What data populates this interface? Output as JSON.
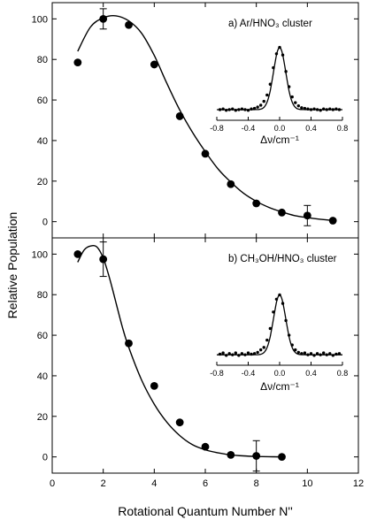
{
  "figure": {
    "xlabel": "Rotational Quantum Number N''",
    "ylabel": "Relative Population"
  },
  "chart_data": [
    {
      "type": "scatter",
      "panel_label": "a) Ar/HNO₃ cluster",
      "xlim": [
        0,
        12
      ],
      "ylim": [
        -8,
        108
      ],
      "xticks": [
        0,
        2,
        4,
        6,
        8,
        10,
        12
      ],
      "yticks": [
        0,
        20,
        40,
        60,
        80,
        100
      ],
      "points": [
        {
          "x": 1,
          "y": 78.5
        },
        {
          "x": 2,
          "y": 100
        },
        {
          "x": 3,
          "y": 97
        },
        {
          "x": 4,
          "y": 77.5
        },
        {
          "x": 5,
          "y": 52
        },
        {
          "x": 6,
          "y": 33.5
        },
        {
          "x": 7,
          "y": 18.5
        },
        {
          "x": 8,
          "y": 9
        },
        {
          "x": 9,
          "y": 4.5
        },
        {
          "x": 10,
          "y": 3
        },
        {
          "x": 11,
          "y": 0.5
        }
      ],
      "error_bars": [
        {
          "x": 2,
          "low": 95,
          "high": 105
        },
        {
          "x": 10,
          "low": -2,
          "high": 8
        }
      ],
      "fit_curve": [
        [
          1,
          84
        ],
        [
          1.5,
          96
        ],
        [
          2,
          100.5
        ],
        [
          2.5,
          101.5
        ],
        [
          3,
          99
        ],
        [
          3.5,
          93
        ],
        [
          4,
          82
        ],
        [
          4.5,
          68
        ],
        [
          5,
          55
        ],
        [
          5.5,
          44
        ],
        [
          6,
          34.5
        ],
        [
          6.5,
          26
        ],
        [
          7,
          19.5
        ],
        [
          7.5,
          14
        ],
        [
          8,
          10
        ],
        [
          8.5,
          7
        ],
        [
          9,
          4.8
        ],
        [
          9.5,
          3
        ],
        [
          10,
          2
        ],
        [
          10.5,
          1.2
        ],
        [
          11,
          0.6
        ]
      ],
      "inset": {
        "xlabel": "Δν/cm⁻¹",
        "xlim": [
          -0.8,
          0.8
        ],
        "xticks": [
          -0.8,
          -0.4,
          0,
          0.4,
          0.8
        ],
        "xtick_labels": [
          "-0.8",
          "-0.4",
          "0.0",
          "0.4",
          "0.8"
        ],
        "ylim": [
          -0.05,
          1.05
        ],
        "points": [
          {
            "x": -0.76,
            "y": 0.02
          },
          {
            "x": -0.72,
            "y": 0.03
          },
          {
            "x": -0.68,
            "y": 0.01
          },
          {
            "x": -0.64,
            "y": 0.02
          },
          {
            "x": -0.6,
            "y": 0.03
          },
          {
            "x": -0.56,
            "y": 0.01
          },
          {
            "x": -0.52,
            "y": 0.02
          },
          {
            "x": -0.48,
            "y": 0.03
          },
          {
            "x": -0.44,
            "y": 0.02
          },
          {
            "x": -0.4,
            "y": 0.01
          },
          {
            "x": -0.36,
            "y": 0.03
          },
          {
            "x": -0.32,
            "y": 0.04
          },
          {
            "x": -0.28,
            "y": 0.06
          },
          {
            "x": -0.24,
            "y": 0.09
          },
          {
            "x": -0.2,
            "y": 0.15
          },
          {
            "x": -0.16,
            "y": 0.25
          },
          {
            "x": -0.12,
            "y": 0.42
          },
          {
            "x": -0.08,
            "y": 0.68
          },
          {
            "x": -0.04,
            "y": 0.9
          },
          {
            "x": 0,
            "y": 1.0
          },
          {
            "x": 0.04,
            "y": 0.88
          },
          {
            "x": 0.08,
            "y": 0.62
          },
          {
            "x": 0.12,
            "y": 0.38
          },
          {
            "x": 0.16,
            "y": 0.22
          },
          {
            "x": 0.2,
            "y": 0.13
          },
          {
            "x": 0.24,
            "y": 0.08
          },
          {
            "x": 0.28,
            "y": 0.05
          },
          {
            "x": 0.32,
            "y": 0.04
          },
          {
            "x": 0.36,
            "y": 0.03
          },
          {
            "x": 0.4,
            "y": 0.02
          },
          {
            "x": 0.44,
            "y": 0.03
          },
          {
            "x": 0.48,
            "y": 0.02
          },
          {
            "x": 0.52,
            "y": 0.01
          },
          {
            "x": 0.56,
            "y": 0.03
          },
          {
            "x": 0.6,
            "y": 0.02
          },
          {
            "x": 0.64,
            "y": 0.03
          },
          {
            "x": 0.68,
            "y": 0.02
          },
          {
            "x": 0.72,
            "y": 0.03
          },
          {
            "x": 0.76,
            "y": 0.02
          }
        ],
        "fit_center": 0.0,
        "fit_width": 0.11
      }
    },
    {
      "type": "scatter",
      "panel_label": "b) CH₃OH/HNO₃ cluster",
      "xlim": [
        0,
        12
      ],
      "ylim": [
        -8,
        108
      ],
      "xticks": [
        0,
        2,
        4,
        6,
        8,
        10,
        12
      ],
      "xtick_labels": [
        "0",
        "2",
        "4",
        "6",
        "8",
        "10",
        "12"
      ],
      "yticks": [
        0,
        20,
        40,
        60,
        80,
        100
      ],
      "points": [
        {
          "x": 1,
          "y": 100
        },
        {
          "x": 2,
          "y": 97.5
        },
        {
          "x": 3,
          "y": 56
        },
        {
          "x": 4,
          "y": 35
        },
        {
          "x": 5,
          "y": 17
        },
        {
          "x": 6,
          "y": 5
        },
        {
          "x": 7,
          "y": 1
        },
        {
          "x": 8,
          "y": 0.5
        },
        {
          "x": 9,
          "y": 0
        }
      ],
      "error_bars": [
        {
          "x": 2,
          "low": 89,
          "high": 106
        },
        {
          "x": 8,
          "low": -7,
          "high": 8
        }
      ],
      "fit_curve": [
        [
          1,
          96
        ],
        [
          1.25,
          102
        ],
        [
          1.5,
          104
        ],
        [
          1.75,
          103.5
        ],
        [
          2,
          98
        ],
        [
          2.25,
          88
        ],
        [
          2.5,
          76
        ],
        [
          2.75,
          64
        ],
        [
          3,
          54
        ],
        [
          3.5,
          38
        ],
        [
          4,
          26
        ],
        [
          4.5,
          17
        ],
        [
          5,
          10.5
        ],
        [
          5.5,
          6
        ],
        [
          6,
          3.5
        ],
        [
          6.5,
          2
        ],
        [
          7,
          1
        ],
        [
          7.5,
          0.5
        ],
        [
          8,
          0.2
        ],
        [
          8.5,
          0.1
        ],
        [
          9,
          0
        ]
      ],
      "inset": {
        "xlabel": "Δν/cm⁻¹",
        "xlim": [
          -0.8,
          0.8
        ],
        "xticks": [
          -0.8,
          -0.4,
          0,
          0.4,
          0.8
        ],
        "xtick_labels": [
          "-0.8",
          "-0.4",
          "0.0",
          "0.4",
          "0.8"
        ],
        "ylim": [
          -0.05,
          1.05
        ],
        "points": [
          {
            "x": -0.76,
            "y": 0.03
          },
          {
            "x": -0.72,
            "y": 0.05
          },
          {
            "x": -0.68,
            "y": 0.01
          },
          {
            "x": -0.64,
            "y": 0.04
          },
          {
            "x": -0.6,
            "y": 0.02
          },
          {
            "x": -0.56,
            "y": 0.05
          },
          {
            "x": -0.52,
            "y": 0.01
          },
          {
            "x": -0.48,
            "y": 0.04
          },
          {
            "x": -0.44,
            "y": 0.02
          },
          {
            "x": -0.4,
            "y": 0.05
          },
          {
            "x": -0.36,
            "y": 0.03
          },
          {
            "x": -0.32,
            "y": 0.04
          },
          {
            "x": -0.28,
            "y": 0.06
          },
          {
            "x": -0.24,
            "y": 0.1
          },
          {
            "x": -0.2,
            "y": 0.14
          },
          {
            "x": -0.16,
            "y": 0.26
          },
          {
            "x": -0.12,
            "y": 0.45
          },
          {
            "x": -0.08,
            "y": 0.72
          },
          {
            "x": -0.04,
            "y": 0.93
          },
          {
            "x": 0,
            "y": 1.0
          },
          {
            "x": 0.04,
            "y": 0.86
          },
          {
            "x": 0.08,
            "y": 0.58
          },
          {
            "x": 0.12,
            "y": 0.34
          },
          {
            "x": 0.16,
            "y": 0.18
          },
          {
            "x": 0.2,
            "y": 0.1
          },
          {
            "x": 0.24,
            "y": 0.06
          },
          {
            "x": 0.28,
            "y": 0.04
          },
          {
            "x": 0.32,
            "y": 0.05
          },
          {
            "x": 0.36,
            "y": 0.02
          },
          {
            "x": 0.4,
            "y": 0.04
          },
          {
            "x": 0.44,
            "y": 0.01
          },
          {
            "x": 0.48,
            "y": 0.04
          },
          {
            "x": 0.52,
            "y": 0.02
          },
          {
            "x": 0.56,
            "y": 0.05
          },
          {
            "x": 0.6,
            "y": 0.02
          },
          {
            "x": 0.64,
            "y": 0.04
          },
          {
            "x": 0.68,
            "y": 0.01
          },
          {
            "x": 0.72,
            "y": 0.03
          },
          {
            "x": 0.76,
            "y": 0.04
          }
        ],
        "fit_center": 0.0,
        "fit_width": 0.11
      }
    }
  ]
}
